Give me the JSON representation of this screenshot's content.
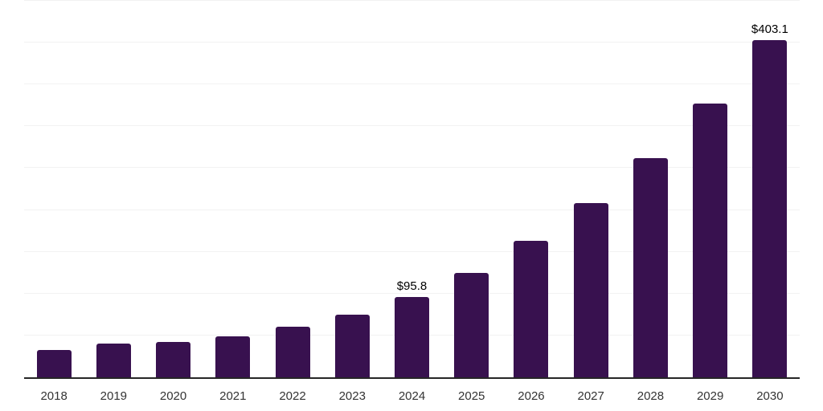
{
  "chart_data": {
    "type": "bar",
    "title": "",
    "xlabel": "",
    "ylabel": "",
    "categories": [
      "2018",
      "2019",
      "2020",
      "2021",
      "2022",
      "2023",
      "2024",
      "2025",
      "2026",
      "2027",
      "2028",
      "2029",
      "2030"
    ],
    "values": [
      33,
      40,
      42,
      49,
      60,
      74.5,
      95.8,
      125,
      163,
      208,
      262,
      327,
      403.1
    ],
    "value_labels": [
      "",
      "",
      "",
      "",
      "",
      "",
      "$95.8",
      "",
      "",
      "",
      "",
      "",
      "$403.1"
    ],
    "ylim": [
      0,
      451
    ],
    "gridline_interval": 50,
    "grid": true,
    "legend": "none",
    "colors": {
      "bar": "#38114F",
      "axis_line": "#262626",
      "gridline": "#f2f2f2",
      "value_label": "#000000",
      "tick_label": "#333333",
      "background": "#ffffff"
    }
  }
}
